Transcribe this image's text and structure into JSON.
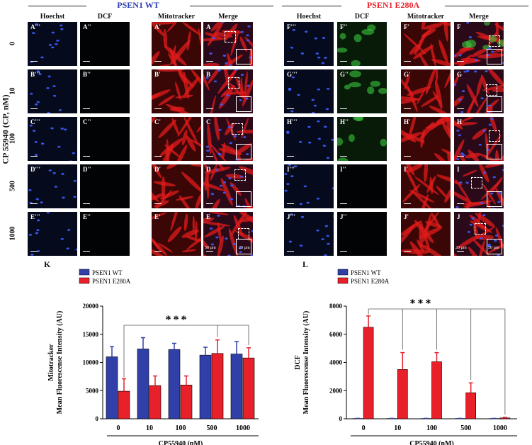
{
  "figure": {
    "y_axis_title": "CP 55940 (CP, nM)",
    "groups": [
      {
        "title": "PSEN1 WT",
        "color": "#2b3fb5"
      },
      {
        "title": "PSEN1 E280A",
        "color": "#e8202a"
      }
    ],
    "column_headers": [
      "Hoechst",
      "DCF",
      "Mitotracker",
      "Merge",
      "Hoechst",
      "DCF",
      "Mitotracker",
      "Merge"
    ],
    "row_labels": [
      "0",
      "10",
      "100",
      "500",
      "1000"
    ],
    "panel_labels": [
      [
        "A'''",
        "A''",
        "A'",
        "A",
        "F'''",
        "F''",
        "F'",
        "F"
      ],
      [
        "B'''",
        "B''",
        "B'",
        "B",
        "G'''",
        "G''",
        "G'",
        "G"
      ],
      [
        "C'''",
        "C''",
        "C'",
        "C",
        "H'''",
        "H''",
        "H'",
        "H"
      ],
      [
        "D'''",
        "D''",
        "D'",
        "D",
        "I'''",
        "I''",
        "I'",
        "I"
      ],
      [
        "E'''",
        "E''",
        "E'",
        "E",
        "J'''",
        "J''",
        "J'",
        "J"
      ]
    ],
    "scale_labels": {
      "scale_50": "50 µm",
      "scale_20": "20 µm"
    },
    "colors": {
      "hoechst": "#3b5bff",
      "dcf": "#39c83c",
      "mitotracker": "#e01b1b"
    }
  },
  "chart_data": [
    {
      "panel": "K",
      "type": "bar",
      "ylabel": "Mitotracker\nMean Fluorescense Intensity (AU)",
      "xlabel": "CP55940 (nM)",
      "categories": [
        "0",
        "10",
        "100",
        "500",
        "1000"
      ],
      "ylim": [
        0,
        20000
      ],
      "yticks": [
        0,
        5000,
        10000,
        15000,
        20000
      ],
      "series": [
        {
          "name": "PSEN1 WT",
          "color": "#3040a8",
          "values": [
            11000,
            12400,
            12300,
            11300,
            11500
          ],
          "errors": [
            1800,
            2000,
            1100,
            1400,
            2200
          ]
        },
        {
          "name": "PSEN1 E280A",
          "color": "#e8202a",
          "values": [
            4900,
            5900,
            6000,
            11600,
            10800
          ],
          "errors": [
            2200,
            1700,
            1600,
            2400,
            1800
          ]
        }
      ],
      "significance": "***"
    },
    {
      "panel": "L",
      "type": "bar",
      "ylabel": "DCF\nMean Fluorescense Intensity (AU)",
      "xlabel": "CP55940 (nM)",
      "categories": [
        "0",
        "10",
        "100",
        "500",
        "1000"
      ],
      "ylim": [
        0,
        8000
      ],
      "yticks": [
        0,
        2000,
        4000,
        6000,
        8000
      ],
      "series": [
        {
          "name": "PSEN1 WT",
          "color": "#3040a8",
          "values": [
            20,
            20,
            20,
            20,
            20
          ],
          "errors": [
            10,
            10,
            10,
            10,
            10
          ]
        },
        {
          "name": "PSEN1 E280A",
          "color": "#e8202a",
          "values": [
            6500,
            3500,
            4050,
            1850,
            60
          ],
          "errors": [
            800,
            1200,
            650,
            700,
            40
          ]
        }
      ],
      "significance": "***"
    }
  ]
}
